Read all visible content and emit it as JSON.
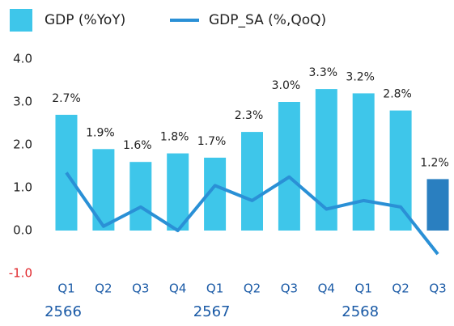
{
  "chart_data": {
    "type": "bar_line",
    "categories": [
      "Q1",
      "Q2",
      "Q3",
      "Q4",
      "Q1",
      "Q2",
      "Q3",
      "Q4",
      "Q1",
      "Q2",
      "Q3"
    ],
    "years": [
      "2566",
      null,
      null,
      null,
      "2567",
      null,
      null,
      null,
      "2568",
      null,
      null
    ],
    "series": [
      {
        "name": "GDP (%YoY)",
        "type": "bar",
        "color": "#3ec6ea",
        "colors": [
          "#3ec6ea",
          "#3ec6ea",
          "#3ec6ea",
          "#3ec6ea",
          "#3ec6ea",
          "#3ec6ea",
          "#3ec6ea",
          "#3ec6ea",
          "#3ec6ea",
          "#3ec6ea",
          "#2a7fc0"
        ],
        "values": [
          2.7,
          1.9,
          1.6,
          1.8,
          1.7,
          2.3,
          3.0,
          3.3,
          3.2,
          2.8,
          1.2
        ],
        "value_labels": [
          "2.7%",
          "1.9%",
          "1.6%",
          "1.8%",
          "1.7%",
          "2.3%",
          "3.0%",
          "3.3%",
          "3.2%",
          "2.8%",
          "1.2%"
        ]
      },
      {
        "name": "GDP_SA (%,QoQ)",
        "type": "line",
        "color": "#2a90d6",
        "values": [
          1.35,
          0.1,
          0.55,
          0.0,
          1.05,
          0.7,
          1.25,
          0.5,
          0.7,
          0.55,
          -0.55
        ]
      }
    ],
    "ylim": [
      -1,
      4
    ],
    "yticks": [
      {
        "value": -1,
        "label": "-1.0"
      },
      {
        "value": 0,
        "label": "0.0"
      },
      {
        "value": 1,
        "label": "1.0"
      },
      {
        "value": 2,
        "label": "2.0"
      },
      {
        "value": 3,
        "label": "3.0"
      },
      {
        "value": 4,
        "label": "4.0"
      }
    ],
    "grid": false
  }
}
